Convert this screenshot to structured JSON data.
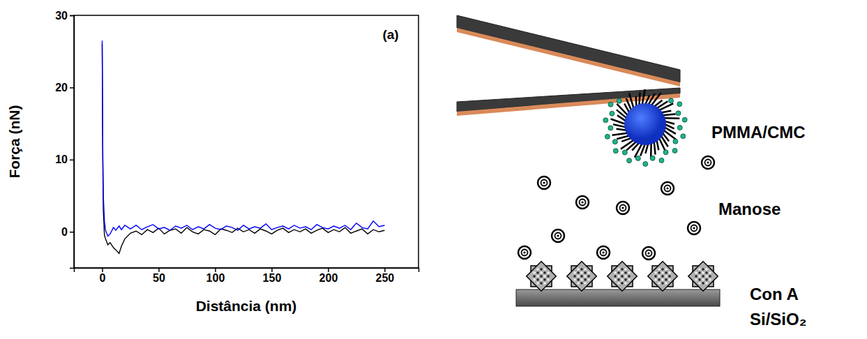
{
  "chart_data": {
    "type": "line",
    "x_label": "Distância (nm)",
    "y_label": "Força (nN)",
    "annotations": [
      "(a)"
    ],
    "x": [
      0,
      0.5,
      1,
      2,
      3,
      5,
      7,
      10,
      12,
      15,
      17,
      20,
      25,
      30,
      35,
      40,
      45,
      50,
      55,
      60,
      65,
      70,
      75,
      80,
      85,
      90,
      95,
      100,
      105,
      110,
      115,
      120,
      125,
      130,
      135,
      140,
      145,
      150,
      155,
      160,
      165,
      170,
      175,
      180,
      185,
      190,
      195,
      200,
      205,
      210,
      215,
      220,
      225,
      230,
      235,
      240,
      245,
      250
    ],
    "series": [
      {
        "color": "#000000",
        "values": [
          26,
          10,
          3,
          -0.5,
          -1,
          -1.8,
          -1.5,
          -2.2,
          -2.5,
          -3,
          -2,
          -1,
          -0.2,
          0.1,
          -0.4,
          0.3,
          -0.1,
          0.5,
          -0.3,
          0.2,
          0.4,
          -0.2,
          0.6,
          0.0,
          -0.3,
          0.3,
          0.1,
          -0.4,
          0.4,
          0.2,
          -0.1,
          0.5,
          0.0,
          0.3,
          -0.2,
          0.4,
          0.1,
          -0.3,
          0.2,
          0.5,
          -0.1,
          0.3,
          0.0,
          0.4,
          -0.2,
          0.2,
          0.5,
          -0.1,
          0.3,
          0.0,
          0.6,
          -0.2,
          0.1,
          0.4,
          -0.3,
          0.3,
          0.0,
          0.2
        ]
      },
      {
        "color": "#0000ff",
        "values": [
          26.5,
          12,
          5,
          1.5,
          0.2,
          -0.6,
          -0.3,
          0.6,
          0.2,
          0.8,
          0.3,
          0.9,
          0.4,
          0.9,
          0.3,
          0.7,
          1.0,
          0.4,
          0.6,
          0.2,
          0.8,
          0.5,
          0.9,
          0.3,
          0.7,
          0.4,
          1.0,
          0.5,
          0.3,
          0.8,
          0.6,
          0.2,
          0.9,
          0.4,
          0.7,
          0.5,
          1.1,
          0.3,
          0.6,
          0.8,
          0.4,
          0.9,
          0.5,
          0.7,
          0.3,
          1.0,
          0.6,
          0.4,
          0.8,
          0.5,
          0.9,
          0.3,
          1.2,
          0.6,
          0.4,
          1.5,
          0.7,
          0.9
        ]
      }
    ],
    "xlim": [
      -25,
      280
    ],
    "ylim": [
      -5,
      30
    ],
    "xticks": [
      0,
      50,
      100,
      150,
      200,
      250
    ],
    "yticks": [
      0,
      10,
      20,
      30
    ]
  },
  "diagram": {
    "labels": [
      "PMMA/CMC",
      "Manose",
      "Con A",
      "Si/SiO₂"
    ]
  }
}
